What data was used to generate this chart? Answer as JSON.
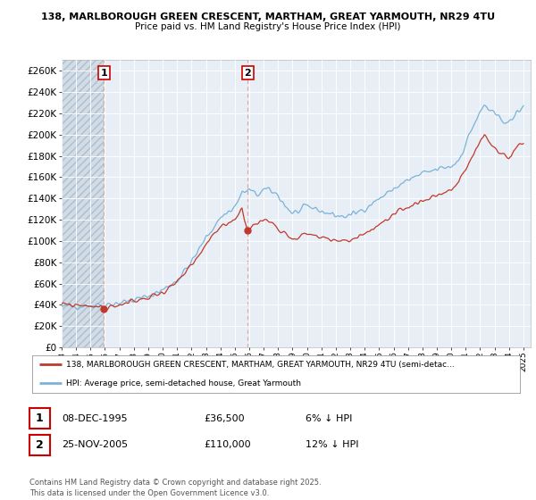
{
  "title1": "138, MARLBOROUGH GREEN CRESCENT, MARTHAM, GREAT YARMOUTH, NR29 4TU",
  "title2": "Price paid vs. HM Land Registry's House Price Index (HPI)",
  "legend_line1": "138, MARLBOROUGH GREEN CRESCENT, MARTHAM, GREAT YARMOUTH, NR29 4TU (semi-detac...",
  "legend_line2": "HPI: Average price, semi-detached house, Great Yarmouth",
  "annotation1_label": "1",
  "annotation1_date": "08-DEC-1995",
  "annotation1_price": "£36,500",
  "annotation1_hpi": "6% ↓ HPI",
  "annotation2_label": "2",
  "annotation2_date": "25-NOV-2005",
  "annotation2_price": "£110,000",
  "annotation2_hpi": "12% ↓ HPI",
  "footer": "Contains HM Land Registry data © Crown copyright and database right 2025.\nThis data is licensed under the Open Government Licence v3.0.",
  "hpi_color": "#7ab3d9",
  "price_color": "#c0392b",
  "vline_color": "#e8a0a0",
  "background_color": "#ffffff",
  "plot_bg_color": "#e8eef5",
  "hatch_bg_color": "#d0dce8",
  "grid_color": "#ffffff",
  "ylim": [
    0,
    270000
  ],
  "yticks": [
    0,
    20000,
    40000,
    60000,
    80000,
    100000,
    120000,
    140000,
    160000,
    180000,
    200000,
    220000,
    240000,
    260000
  ],
  "sale1_x": 1995.92,
  "sale1_y": 36500,
  "sale2_x": 2005.9,
  "sale2_y": 110000,
  "xmin": 1993.0,
  "xmax": 2025.5
}
